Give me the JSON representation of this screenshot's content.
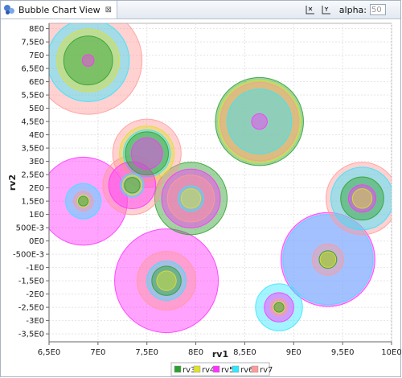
{
  "view": {
    "title": "Bubble Chart View",
    "close_glyph": "⊠",
    "alpha_label": "alpha:",
    "alpha_value": "50"
  },
  "icons": {
    "tab_icon": "bubble-chart-icon",
    "close": "close-icon",
    "x_axis_toggle": "x-axis-icon",
    "y_axis_toggle": "y-axis-icon"
  },
  "chart_data": {
    "type": "scatter",
    "subtype": "bubble",
    "xlabel": "rv1",
    "ylabel": "rv2",
    "xlim": [
      6.5,
      10.0
    ],
    "ylim": [
      -3.8,
      8.2
    ],
    "grid": true,
    "legend_position": "bottom-center",
    "x_ticks": [
      {
        "v": 6.5,
        "label": "6,5E0"
      },
      {
        "v": 7.0,
        "label": "7E0"
      },
      {
        "v": 7.5,
        "label": "7,5E0"
      },
      {
        "v": 8.0,
        "label": "8E0"
      },
      {
        "v": 8.5,
        "label": "8,5E0"
      },
      {
        "v": 9.0,
        "label": "9E0"
      },
      {
        "v": 9.5,
        "label": "9,5E0"
      },
      {
        "v": 10.0,
        "label": "10E0"
      }
    ],
    "y_ticks": [
      {
        "v": 8.0,
        "label": "8E0"
      },
      {
        "v": 7.5,
        "label": "7,5E0"
      },
      {
        "v": 7.0,
        "label": "7E0"
      },
      {
        "v": 6.5,
        "label": "6,5E0"
      },
      {
        "v": 6.0,
        "label": "6E0"
      },
      {
        "v": 5.5,
        "label": "5,5E0"
      },
      {
        "v": 5.0,
        "label": "5E0"
      },
      {
        "v": 4.5,
        "label": "4,5E0"
      },
      {
        "v": 4.0,
        "label": "4E0"
      },
      {
        "v": 3.5,
        "label": "3,5E0"
      },
      {
        "v": 3.0,
        "label": "3E0"
      },
      {
        "v": 2.5,
        "label": "2,5E0"
      },
      {
        "v": 2.0,
        "label": "2E0"
      },
      {
        "v": 1.5,
        "label": "1,5E0"
      },
      {
        "v": 1.0,
        "label": "1E0"
      },
      {
        "v": 0.5,
        "label": "500E-3"
      },
      {
        "v": 0.0,
        "label": "0E0"
      },
      {
        "v": -0.5,
        "label": "-500E-3"
      },
      {
        "v": -1.0,
        "label": "-1E0"
      },
      {
        "v": -1.5,
        "label": "-1,5E0"
      },
      {
        "v": -2.0,
        "label": "-2E0"
      },
      {
        "v": -2.5,
        "label": "-2,5E0"
      },
      {
        "v": -3.0,
        "label": "-3E0"
      },
      {
        "v": -3.5,
        "label": "-3,5E0"
      }
    ],
    "series": [
      {
        "name": "rv3",
        "color": "#2ca02c"
      },
      {
        "name": "rv4",
        "color": "#e0e030"
      },
      {
        "name": "rv5",
        "color": "#ff33ff"
      },
      {
        "name": "rv6",
        "color": "#33e6ff"
      },
      {
        "name": "rv7",
        "color": "#ff9a9a"
      }
    ],
    "points": [
      {
        "x": 6.9,
        "y": 6.8,
        "sizes": {
          "rv3": 0.25,
          "rv4": 0.32,
          "rv5": 0.06,
          "rv6": 0.42,
          "rv7": 0.55
        }
      },
      {
        "x": 8.65,
        "y": 4.5,
        "sizes": {
          "rv3": 0.45,
          "rv4": 0.42,
          "rv5": 0.08,
          "rv6": 0.33,
          "rv7": 0.4
        }
      },
      {
        "x": 7.5,
        "y": 3.3,
        "sizes": {
          "rv3": 0.22,
          "rv4": 0.28,
          "rv5": 0.16,
          "rv6": 0.24,
          "rv7": 0.35
        }
      },
      {
        "x": 6.85,
        "y": 1.5,
        "sizes": {
          "rv3": 0.05,
          "rv4": 0.06,
          "rv5": 0.45,
          "rv6": 0.18,
          "rv7": 0.1
        }
      },
      {
        "x": 7.35,
        "y": 2.1,
        "sizes": {
          "rv3": 0.08,
          "rv4": 0.1,
          "rv5": 0.24,
          "rv6": 0.12,
          "rv7": 0.3
        }
      },
      {
        "x": 7.95,
        "y": 1.6,
        "sizes": {
          "rv3": 0.37,
          "rv4": 0.1,
          "rv5": 0.3,
          "rv6": 0.13,
          "rv7": 0.24
        }
      },
      {
        "x": 9.7,
        "y": 1.6,
        "sizes": {
          "rv3": 0.22,
          "rv4": 0.1,
          "rv5": 0.14,
          "rv6": 0.32,
          "rv7": 0.37
        }
      },
      {
        "x": 7.7,
        "y": -1.5,
        "sizes": {
          "rv3": 0.15,
          "rv4": 0.1,
          "rv5": 0.53,
          "rv6": 0.2,
          "rv7": 0.3
        }
      },
      {
        "x": 9.35,
        "y": -0.7,
        "sizes": {
          "rv3": 0.09,
          "rv4": 0.08,
          "rv5": 0.48,
          "rv6": 0.46,
          "rv7": 0.16
        }
      },
      {
        "x": 8.85,
        "y": -2.5,
        "sizes": {
          "rv3": 0.05,
          "rv4": 0.06,
          "rv5": 0.15,
          "rv6": 0.24,
          "rv7": 0.09
        }
      }
    ]
  }
}
